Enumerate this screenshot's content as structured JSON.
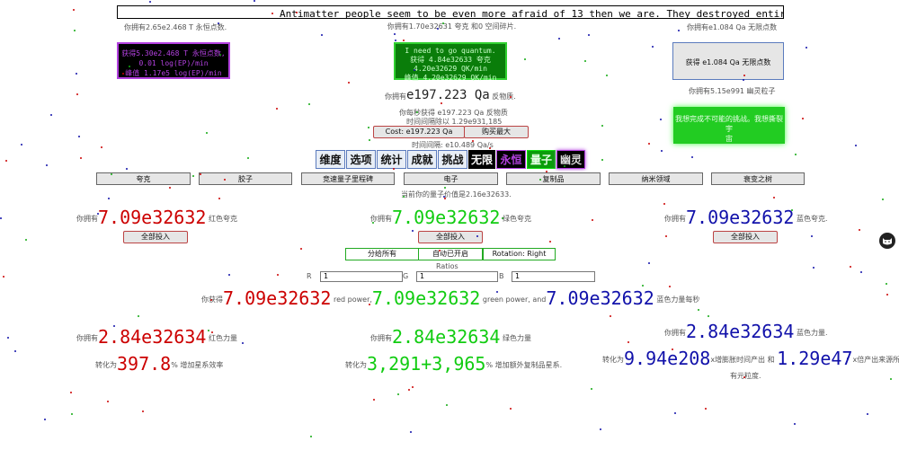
{
  "ticker": "Antimatter people seem to be even more afraid of 13 then we are. They destroyed entire galaxies just to rem",
  "eternity": {
    "points_text": "你拥有2.65e2.468 T 永恒点数.",
    "button_lines": [
      "获得5.30e2.468 T 永恒点数,",
      "0.01 log(EP)/min",
      "峰值 1.17e5 log(EP)/min"
    ]
  },
  "quantum": {
    "quarks_text": "你拥有1.70e32631 夸克 和0 空间碎片.",
    "button_lines": [
      "I need to go quantum.",
      "获得 4.84e32633 夸克",
      "4.20e32629 QK/min",
      "峰值 4.20e32629 QK/min"
    ]
  },
  "infinity": {
    "points_text": "你拥有e1.084 Qa 无限点数",
    "button_label": "获得 e1.084 Qa 无限点数",
    "ghost_text": "你拥有5.15e991 幽灵粒子",
    "ghost_button_lines": [
      "我想完成不可能的挑战。我想撕裂宇",
      "宙"
    ]
  },
  "antimatter": {
    "amount_prefix": "你拥有",
    "amount": "e197.223 Qa",
    "amount_suffix": "反物质.",
    "per_sec": "你每秒获得 e197.223 Qa 反物质",
    "interval": "时间间隔除以 1.29e931,185",
    "cost_label": "Cost: e197.223 Qa",
    "max_label": "购买最大",
    "tick": "时间间隔: e10.489 Qa/s"
  },
  "tabs": [
    {
      "label": "维度",
      "style": "normal"
    },
    {
      "label": "选项",
      "style": "normal"
    },
    {
      "label": "统计",
      "style": "normal"
    },
    {
      "label": "成就",
      "style": "normal"
    },
    {
      "label": "挑战",
      "style": "normal"
    },
    {
      "label": "无限",
      "style": "black"
    },
    {
      "label": "永恒",
      "style": "purple"
    },
    {
      "label": "量子",
      "style": "green"
    },
    {
      "label": "幽灵",
      "style": "ghost"
    }
  ],
  "subtabs": [
    "夸克",
    "胶子",
    "竞速量子里程碑",
    "电子",
    "复制品",
    "纳米领域",
    "衰变之树"
  ],
  "quantum_value": "当前你的量子价值是2.16e32633.",
  "quarks": {
    "red": {
      "prefix": "你拥有",
      "value": "7.09e32632",
      "suffix": "红色夸克"
    },
    "green": {
      "prefix": "你拥有",
      "value": "7.09e32632",
      "suffix": "绿色夸克"
    },
    "blue": {
      "prefix": "你拥有",
      "value": "7.09e32632",
      "suffix": "蓝色夸克."
    },
    "invest_label": "全部投入"
  },
  "controls": {
    "distribute": "分给所有",
    "auto": "自动已开启",
    "rotation": "Rotation: Right",
    "ratios_label": "Ratios",
    "r_label": "R",
    "g_label": "G",
    "b_label": "B",
    "r_value": "1",
    "g_value": "1",
    "b_value": "1"
  },
  "power_gain": {
    "prefix": "你获得",
    "red": "7.09e32632",
    "red_suffix": "red power,",
    "green": "7.09e32632",
    "green_suffix": "green power, and",
    "blue": "7.09e32632",
    "blue_suffix": "蓝色力量每秒"
  },
  "powers": {
    "red": {
      "prefix": "你拥有",
      "value": "2.84e32634",
      "suffix": "红色力量"
    },
    "green": {
      "prefix": "你拥有",
      "value": "2.84e32634",
      "suffix": "绿色力量"
    },
    "blue": {
      "prefix": "你拥有",
      "value": "2.84e32634",
      "suffix": "蓝色力量."
    }
  },
  "effects": {
    "red": {
      "prefix": "转化为",
      "value": "397.8",
      "suffix": "% 增加星系效率"
    },
    "green": {
      "prefix": "转化为",
      "value": "3,291+3,965",
      "suffix": "% 增加额外复制品星系."
    },
    "blue": {
      "prefix": "转化为",
      "value": "9.94e208",
      "mid": "x增膨胀时间产出 和",
      "value2": "1.29e47",
      "suffix": "x倍产出来源所",
      "suffix2": "有元粒度."
    }
  },
  "colors": {
    "red": "#cc0000",
    "green": "#11cc11",
    "blue": "#1111aa",
    "purple": "#b341e0"
  },
  "side_icon": "cat-icon"
}
